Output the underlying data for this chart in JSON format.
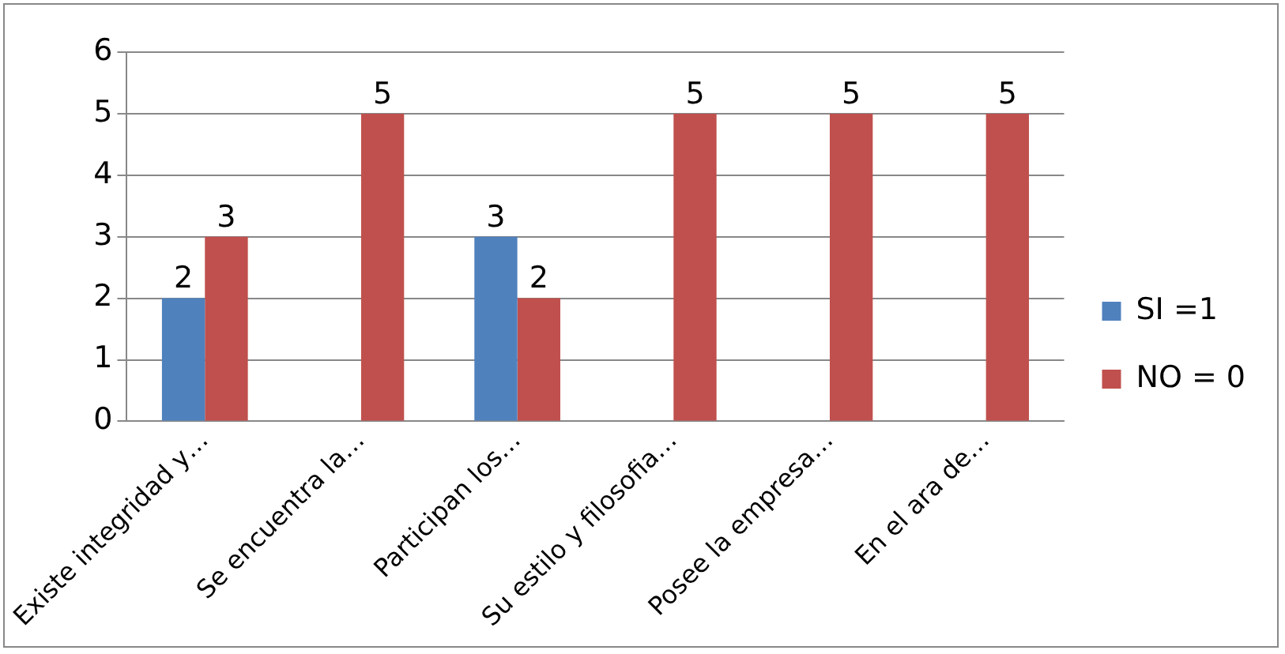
{
  "chart_data": {
    "type": "bar",
    "categories": [
      "Existe integridad y…",
      "Se encuentra la…",
      "Participan los…",
      "Su estilo y filosofia…",
      "Posee la empresa…",
      "En el ara de…"
    ],
    "series": [
      {
        "name": "SI =1",
        "color": "#4f81bd",
        "values": [
          2,
          null,
          3,
          null,
          null,
          null
        ],
        "value_labels": [
          "2",
          null,
          "3",
          null,
          null,
          null
        ]
      },
      {
        "name": "NO = 0",
        "color": "#c0504d",
        "values": [
          3,
          5,
          2,
          5,
          5,
          5
        ],
        "value_labels": [
          "3",
          "5",
          "2",
          "5",
          "5",
          "5"
        ]
      }
    ],
    "ylim": [
      0,
      6
    ],
    "yticks": [
      0,
      1,
      2,
      3,
      4,
      5,
      6
    ],
    "grid": "y",
    "legend": "right"
  }
}
